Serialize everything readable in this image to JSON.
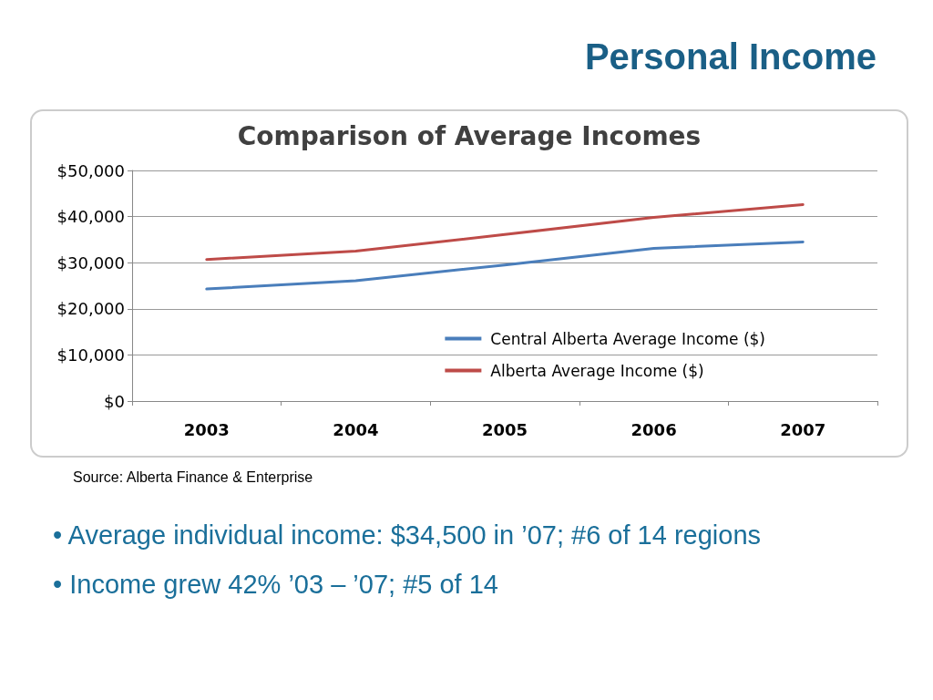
{
  "chart_data": {
    "type": "line",
    "title": "Personal Income",
    "subtitle": "Comparison of Average Incomes",
    "categories": [
      "2003",
      "2004",
      "2005",
      "2006",
      "2007"
    ],
    "series": [
      {
        "name": "Central Alberta Average Income ($)",
        "color": "#4a7ebb",
        "values": [
          24300,
          26100,
          29500,
          33100,
          34500
        ]
      },
      {
        "name": "Alberta Average Income ($)",
        "color": "#be4b48",
        "values": [
          30700,
          32500,
          36100,
          39800,
          42600
        ]
      }
    ],
    "ylim": [
      0,
      50000
    ],
    "yticks": [
      {
        "value": 0,
        "label": "$0"
      },
      {
        "value": 10000,
        "label": "$10,000"
      },
      {
        "value": 20000,
        "label": "$20,000"
      },
      {
        "value": 30000,
        "label": "$30,000"
      },
      {
        "value": 40000,
        "label": "$40,000"
      },
      {
        "value": 50000,
        "label": "$50,000"
      }
    ],
    "grid": "y",
    "legend": "bottom right",
    "marker": "none",
    "line_style": "solid",
    "annotations": [
      "Source: Alberta Finance & Enterprise",
      "• Average individual income: $34,500 in ’07; #6 of 14 regions",
      "• Income grew 42% ’03 – ’07; #5 of 14"
    ]
  }
}
